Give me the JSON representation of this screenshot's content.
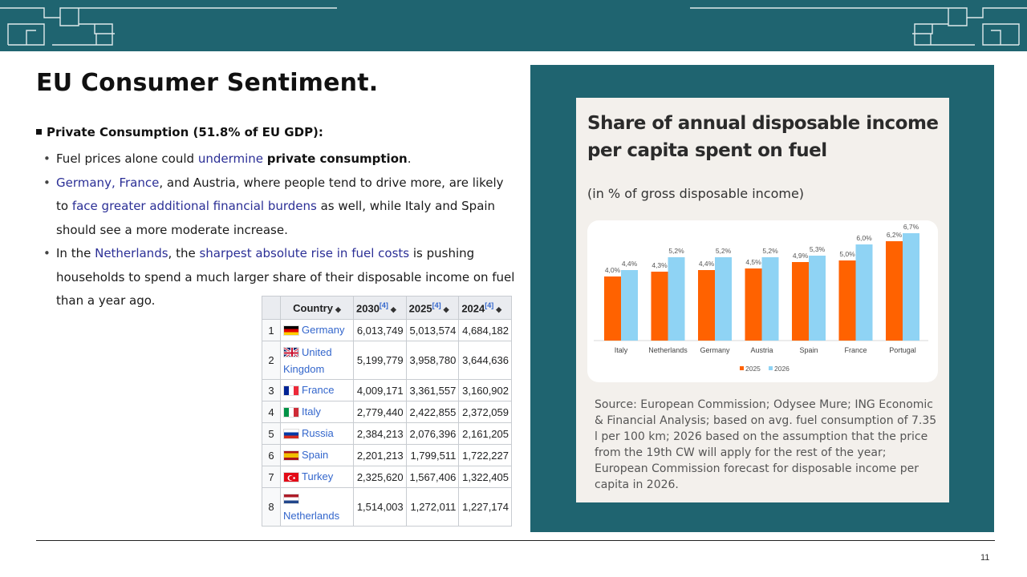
{
  "slide": {
    "title": "EU Consumer Sentiment.",
    "section_head": "Private Consumption (51.8% of EU GDP):",
    "page_number": "11"
  },
  "bullets": {
    "b1": {
      "p1": "Fuel prices alone could ",
      "p2": "undermine",
      "p3": " ",
      "p4": "private consumption",
      "p5": "."
    },
    "b2": {
      "p1": "Germany, France",
      "p2": ", and Austria, where people tend to drive more, are likely to ",
      "p3": "face greater additional financial burdens",
      "p4": " as well, while Italy and Spain should see a more moderate increase."
    },
    "b3": {
      "p1": "In the ",
      "p2": "Netherlands",
      "p3": ", the ",
      "p4": "sharpest absolute rise in fuel costs",
      "p5": " is pushing households to spend a much larger share of their disposable income on fuel than a year ago."
    }
  },
  "table": {
    "headers": {
      "country": "Country",
      "c2030": "2030",
      "c2025": "2025",
      "c2024": "2024",
      "ref": "[4]"
    },
    "rows": [
      {
        "rank": "1",
        "country": "Germany",
        "v2030": "6,013,749",
        "v2025": "5,013,574",
        "v2024": "4,684,182"
      },
      {
        "rank": "2",
        "country": "United Kingdom",
        "v2030": "5,199,779",
        "v2025": "3,958,780",
        "v2024": "3,644,636"
      },
      {
        "rank": "3",
        "country": "France",
        "v2030": "4,009,171",
        "v2025": "3,361,557",
        "v2024": "3,160,902"
      },
      {
        "rank": "4",
        "country": "Italy",
        "v2030": "2,779,440",
        "v2025": "2,422,855",
        "v2024": "2,372,059"
      },
      {
        "rank": "5",
        "country": "Russia",
        "v2030": "2,384,213",
        "v2025": "2,076,396",
        "v2024": "2,161,205"
      },
      {
        "rank": "6",
        "country": "Spain",
        "v2030": "2,201,213",
        "v2025": "1,799,511",
        "v2024": "1,722,227"
      },
      {
        "rank": "7",
        "country": "Turkey",
        "v2030": "2,325,620",
        "v2025": "1,567,406",
        "v2024": "1,322,405"
      },
      {
        "rank": "8",
        "country": "Netherlands",
        "v2030": "1,514,003",
        "v2025": "1,272,011",
        "v2024": "1,227,174"
      }
    ]
  },
  "chart_data": {
    "type": "bar",
    "title": "Share of annual disposable income per capita spent on fuel",
    "subtitle": "(in % of gross disposable income)",
    "categories": [
      "Italy",
      "Netherlands",
      "Germany",
      "Austria",
      "Spain",
      "France",
      "Portugal"
    ],
    "series": [
      {
        "name": "2025",
        "color": "#ff6200",
        "values": [
          4.0,
          4.3,
          4.4,
          4.5,
          4.9,
          5.0,
          6.2
        ],
        "labels": [
          "4,0%",
          "4,3%",
          "4,4%",
          "4,5%",
          "4,9%",
          "5,0%",
          "6,2%"
        ]
      },
      {
        "name": "2026",
        "color": "#8fd3f4",
        "values": [
          4.4,
          5.2,
          5.2,
          5.2,
          5.3,
          6.0,
          6.7
        ],
        "labels": [
          "4,4%",
          "5,2%",
          "5,2%",
          "5,2%",
          "5,3%",
          "6,0%",
          "6,7%"
        ]
      }
    ],
    "ylim": [
      0,
      7
    ],
    "grid": false,
    "legend": "bottom",
    "source": "Source: European Commission; Odysee Mure; ING Economic & Financial Analysis; based on avg. fuel consumption of 7.35 l per 100 km; 2026 based on the assumption that the price from the 19th CW will apply for the rest of the year; European Commission forecast for disposable income per capita in 2026."
  }
}
